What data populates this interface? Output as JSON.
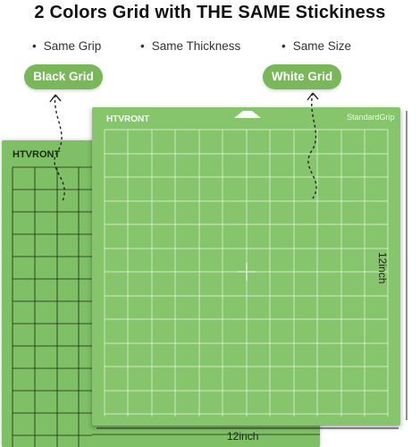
{
  "title": "2 Colors Grid with THE SAME Stickiness",
  "features": [
    "Same Grip",
    "Same Thickness",
    "Same Size"
  ],
  "pills": {
    "black": "Black Grid",
    "white": "White Grid"
  },
  "mats": {
    "black_brand": "HTVRONT",
    "white_brand": "HTVRONT",
    "white_grip_label": "StandardGrip"
  },
  "dimensions": {
    "width": "12inch",
    "height": "12inch"
  },
  "colors": {
    "mat_green": "#86c56c",
    "mat_green_back": "#7fbf66",
    "pill_green": "#79b75a"
  }
}
